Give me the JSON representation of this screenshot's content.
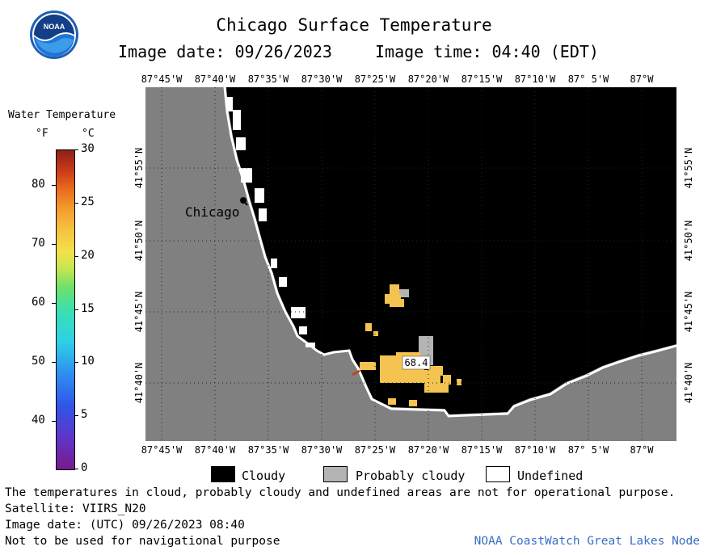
{
  "header": {
    "title": "Chicago Surface Temperature",
    "image_date_label": "Image date: 09/26/2023",
    "image_time_label": "Image time: 04:40 (EDT)",
    "logo_text": "NOAA"
  },
  "legend": {
    "title": "Water Temperature",
    "unit_f": "°F",
    "unit_c": "°C",
    "fahrenheit_ticks": [
      "80",
      "70",
      "60",
      "50",
      "40"
    ],
    "celsius_ticks": [
      "30",
      "25",
      "20",
      "15",
      "10",
      "5",
      "0"
    ],
    "fahrenheit_tick_values": [
      80,
      70,
      60,
      50,
      40
    ],
    "celsius_tick_values": [
      30,
      25,
      20,
      15,
      10,
      5,
      0
    ],
    "celsius_range": [
      0,
      30
    ]
  },
  "map": {
    "longitude_labels": [
      "87°45'W",
      "87°40'W",
      "87°35'W",
      "87°30'W",
      "87°25'W",
      "87°20'W",
      "87°15'W",
      "87°10'W",
      "87° 5'W",
      "87°W"
    ],
    "latitude_labels": [
      "41°55'N",
      "41°50'N",
      "41°45'N",
      "41°40'N"
    ],
    "city_label": "Chicago",
    "temperature_label": "68.4",
    "colors": {
      "land": "#808080",
      "cloudy": "#000000",
      "probably_cloudy": "#b4b4b4",
      "undefined": "#ffffff",
      "warm_water": "#f5c450",
      "grid": "#222222"
    }
  },
  "key": {
    "cloudy": "Cloudy",
    "probably_cloudy": "Probably cloudy",
    "undefined": "Undefined"
  },
  "footer": {
    "disclaimer": "The temperatures in cloud, probably cloudy and undefined areas are not for operational purpose.",
    "satellite": "Satellite: VIIRS_N20",
    "utc_date": "Image date: (UTC) 09/26/2023  08:40",
    "navigation": "Not to be used for navigational purpose",
    "node": "NOAA CoastWatch Great Lakes Node"
  }
}
